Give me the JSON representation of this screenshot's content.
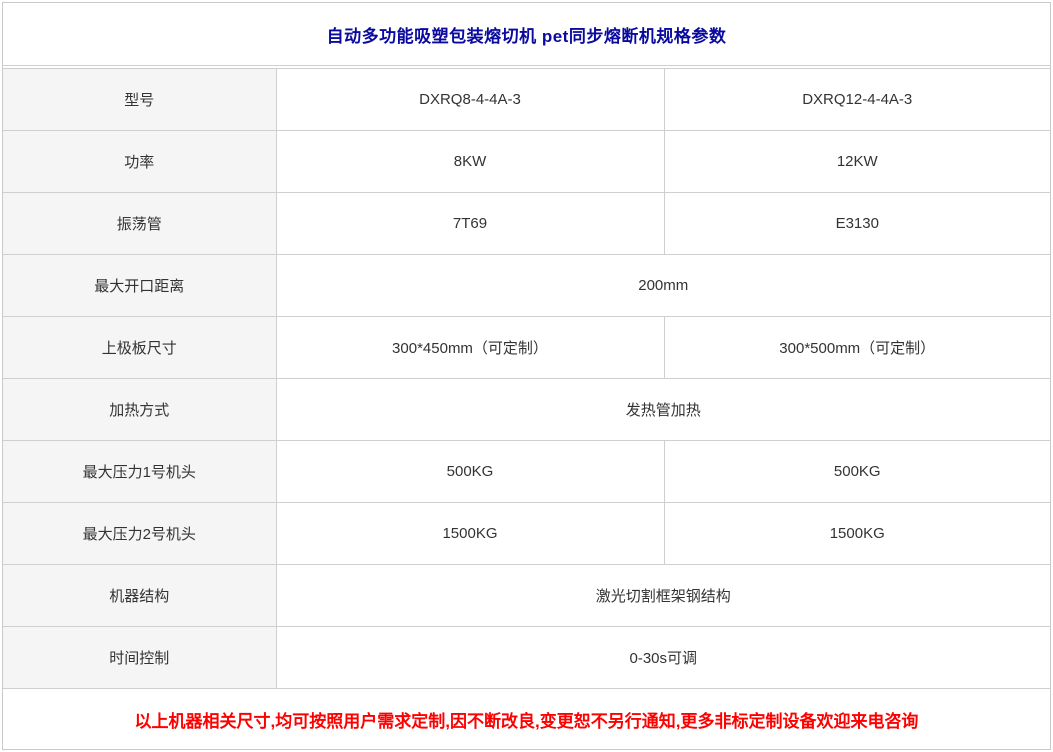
{
  "table": {
    "title": "自动多功能吸塑包装熔切机 pet同步熔断机规格参数",
    "rows": [
      {
        "label": "型号",
        "values": [
          "DXRQ8-4-4A-3",
          "DXRQ12-4-4A-3"
        ]
      },
      {
        "label": "功率",
        "values": [
          "8KW",
          "12KW"
        ]
      },
      {
        "label": "振荡管",
        "values": [
          "7T69",
          "E3130"
        ]
      },
      {
        "label": "最大开口距离",
        "values": [
          "200mm"
        ],
        "span": true
      },
      {
        "label": "上极板尺寸",
        "values": [
          "300*450mm（可定制）",
          "300*500mm（可定制）"
        ]
      },
      {
        "label": "加热方式",
        "values": [
          "发热管加热"
        ],
        "span": true
      },
      {
        "label": "最大压力1号机头",
        "values": [
          "500KG",
          "500KG"
        ]
      },
      {
        "label": "最大压力2号机头",
        "values": [
          "1500KG",
          "1500KG"
        ]
      },
      {
        "label": "机器结构",
        "values": [
          "激光切割框架钢结构"
        ],
        "span": true
      },
      {
        "label": "时间控制",
        "values": [
          "0-30s可调"
        ],
        "span": true
      }
    ],
    "footer": "以上机器相关尺寸,均可按照用户需求定制,因不断改良,变更恕不另行通知,更多非标定制设备欢迎来电咨询"
  },
  "colors": {
    "title_text": "#0a0a9e",
    "footer_text": "#ff0000",
    "label_column_bg": "#f5f5f5",
    "border": "#cfcfcf",
    "body_text": "#333333"
  }
}
